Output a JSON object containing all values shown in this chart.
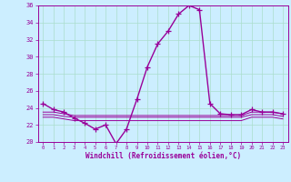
{
  "xlabel": "Windchill (Refroidissement éolien,°C)",
  "hours": [
    0,
    1,
    2,
    3,
    4,
    5,
    6,
    7,
    8,
    9,
    10,
    11,
    12,
    13,
    14,
    15,
    16,
    17,
    18,
    19,
    20,
    21,
    22,
    23
  ],
  "line1": [
    24.5,
    23.8,
    23.5,
    22.8,
    22.2,
    21.5,
    22.0,
    19.8,
    21.5,
    25.0,
    28.8,
    31.5,
    33.0,
    35.0,
    36.0,
    35.5,
    24.5,
    23.3,
    23.2,
    23.2,
    23.8,
    23.5,
    23.5,
    23.3
  ],
  "line2": [
    23.5,
    23.5,
    23.3,
    23.1,
    23.1,
    23.1,
    23.1,
    23.1,
    23.1,
    23.1,
    23.1,
    23.1,
    23.1,
    23.1,
    23.1,
    23.1,
    23.1,
    23.1,
    23.1,
    23.1,
    23.5,
    23.5,
    23.5,
    23.3
  ],
  "line3": [
    23.2,
    23.2,
    23.0,
    22.9,
    22.9,
    22.9,
    22.9,
    22.9,
    22.9,
    22.9,
    22.9,
    22.9,
    22.9,
    22.9,
    22.9,
    22.9,
    22.9,
    22.9,
    22.9,
    22.9,
    23.2,
    23.2,
    23.2,
    23.0
  ],
  "line4": [
    22.9,
    22.9,
    22.7,
    22.5,
    22.5,
    22.5,
    22.5,
    22.5,
    22.5,
    22.5,
    22.5,
    22.5,
    22.5,
    22.5,
    22.5,
    22.5,
    22.5,
    22.5,
    22.5,
    22.5,
    22.9,
    22.9,
    22.9,
    22.7
  ],
  "ylim": [
    20,
    36
  ],
  "yticks": [
    20,
    22,
    24,
    26,
    28,
    30,
    32,
    34,
    36
  ],
  "line_color": "#990099",
  "bg_color": "#cceeff",
  "grid_color": "#aaddcc",
  "markersize": 4,
  "linewidth": 1.0
}
